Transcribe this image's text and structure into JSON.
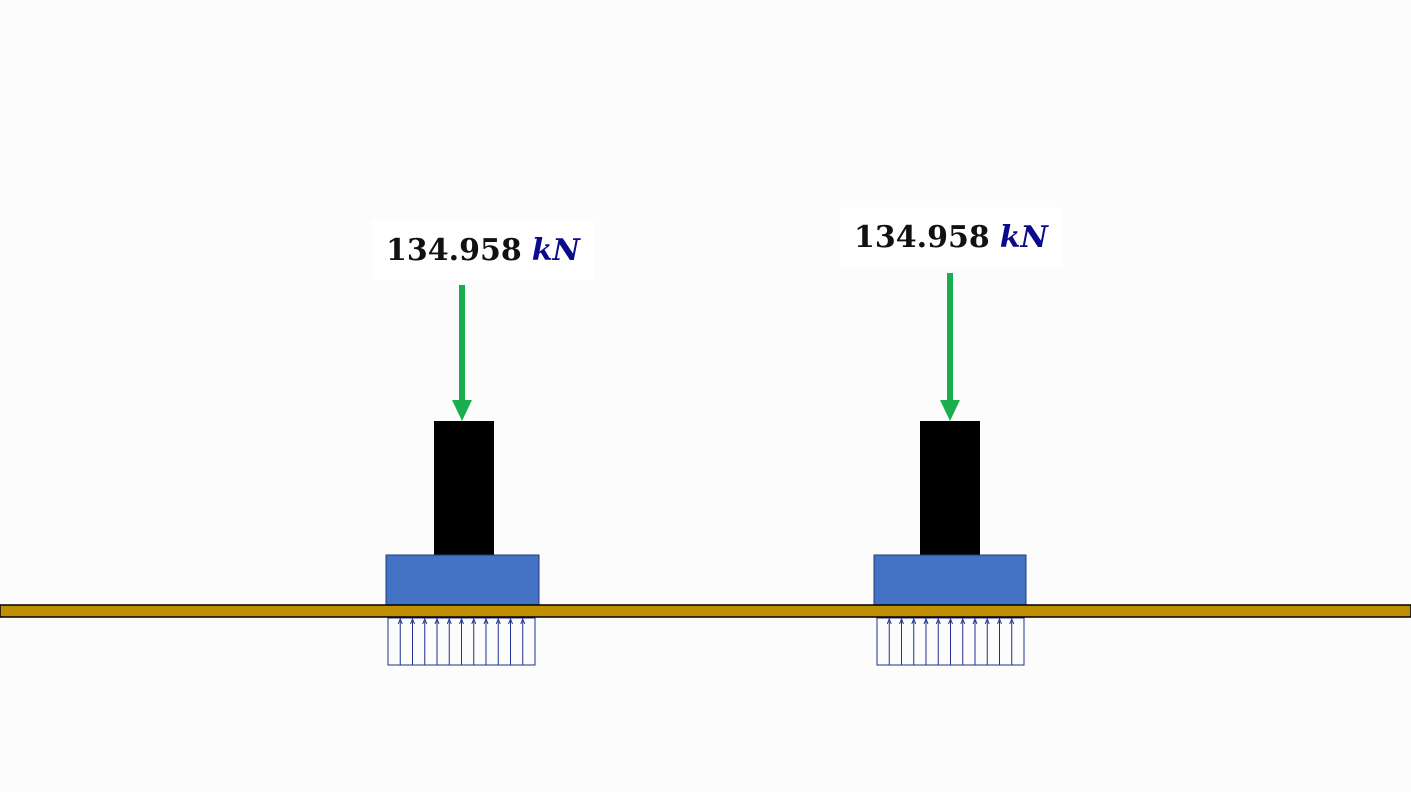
{
  "loads": [
    {
      "value": "134.958",
      "unit": "kN"
    },
    {
      "value": "134.958",
      "unit": "kN"
    }
  ],
  "colors": {
    "background": "#fcfcfc",
    "arrow": "#1aae4e",
    "column": "#000000",
    "footing": "#4472c4",
    "ground_beam": "#bf8f00",
    "soil_pressure": "#1f2f8f",
    "unit_text": "#0a0a8c"
  }
}
